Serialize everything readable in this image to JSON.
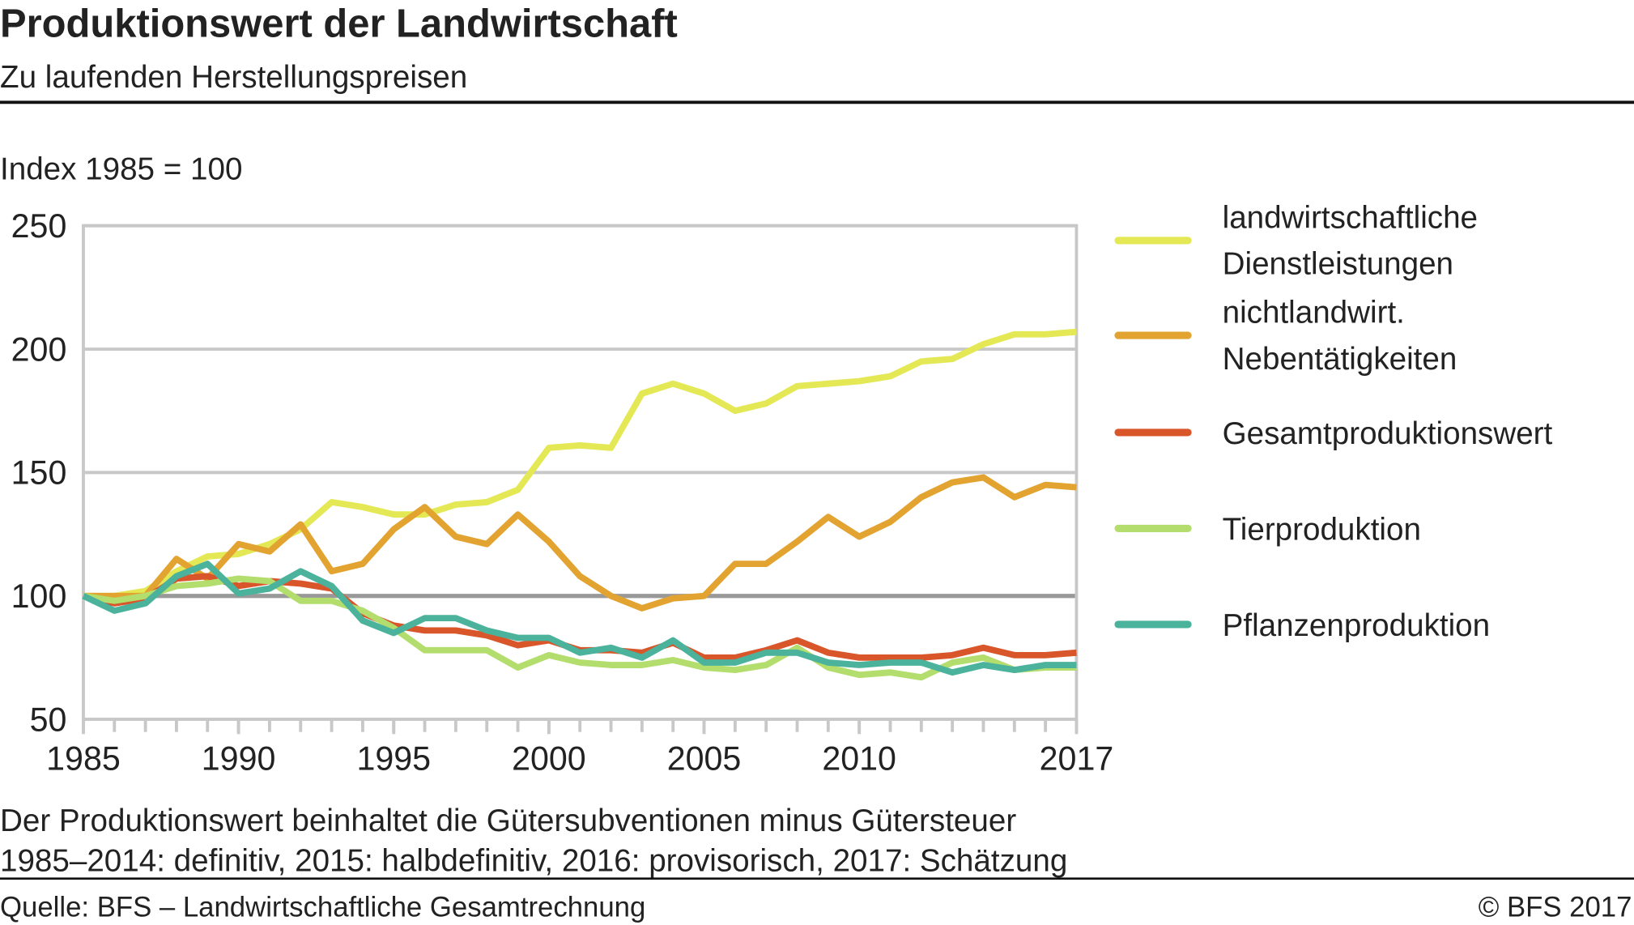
{
  "chart_data": {
    "type": "line",
    "title": "Produktionswert der Landwirtschaft",
    "subtitle": "Zu laufenden Herstellungspreisen",
    "y_label": "Index 1985 = 100",
    "notes": [
      "Der Produktionswert beinhaltet die Gütersubventionen minus Gütersteuer",
      "1985–2014: definitiv, 2015: halbdefinitiv, 2016: provisorisch, 2017: Schätzung"
    ],
    "source": "Quelle: BFS – Landwirtschaftliche Gesamtrechnung",
    "copyright": "© BFS  2017",
    "x": [
      1985,
      1986,
      1987,
      1988,
      1989,
      1990,
      1991,
      1992,
      1993,
      1994,
      1995,
      1996,
      1997,
      1998,
      1999,
      2000,
      2001,
      2002,
      2003,
      2004,
      2005,
      2006,
      2007,
      2008,
      2009,
      2010,
      2011,
      2012,
      2013,
      2014,
      2015,
      2016,
      2017
    ],
    "xlim": [
      1985,
      2017
    ],
    "xticks": [
      1985,
      1990,
      1995,
      2000,
      2005,
      2010,
      2017
    ],
    "ylim": [
      50,
      250
    ],
    "yticks": [
      50,
      100,
      150,
      200,
      250
    ],
    "grid": true,
    "highlight_tick": 100,
    "legend": "right",
    "series": [
      {
        "name": "landwirtschaftliche Dienstleistungen",
        "color": "#e3e854",
        "values": [
          100,
          100,
          102,
          110,
          116,
          117,
          121,
          127,
          138,
          136,
          133,
          133,
          137,
          138,
          143,
          160,
          161,
          160,
          182,
          186,
          182,
          175,
          178,
          185,
          186,
          187,
          189,
          195,
          196,
          202,
          206,
          206,
          207
        ]
      },
      {
        "name": "nichtlandwirt. Nebentätigkeiten",
        "color": "#e2a330",
        "values": [
          100,
          100,
          100,
          115,
          107,
          121,
          118,
          129,
          110,
          113,
          127,
          136,
          124,
          121,
          133,
          122,
          108,
          100,
          95,
          99,
          100,
          113,
          113,
          122,
          132,
          124,
          130,
          140,
          146,
          148,
          140,
          145,
          144
        ]
      },
      {
        "name": "Gesamtproduktionswert",
        "color": "#d9552a",
        "values": [
          100,
          97,
          99,
          107,
          108,
          104,
          106,
          105,
          103,
          93,
          88,
          86,
          86,
          84,
          80,
          82,
          78,
          78,
          77,
          81,
          75,
          75,
          78,
          82,
          77,
          75,
          75,
          75,
          76,
          79,
          76,
          76,
          77
        ]
      },
      {
        "name": "Tierproduktion",
        "color": "#b3dd6c",
        "values": [
          100,
          98,
          100,
          104,
          105,
          107,
          106,
          98,
          98,
          94,
          87,
          78,
          78,
          78,
          71,
          76,
          73,
          72,
          72,
          74,
          71,
          70,
          72,
          79,
          71,
          68,
          69,
          67,
          73,
          75,
          70,
          71,
          71
        ]
      },
      {
        "name": "Pflanzenproduktion",
        "color": "#4bb29c",
        "values": [
          100,
          94,
          97,
          108,
          113,
          101,
          103,
          110,
          104,
          90,
          85,
          91,
          91,
          86,
          83,
          83,
          77,
          79,
          75,
          82,
          73,
          73,
          77,
          77,
          73,
          72,
          73,
          73,
          69,
          72,
          70,
          72,
          72
        ]
      }
    ]
  }
}
